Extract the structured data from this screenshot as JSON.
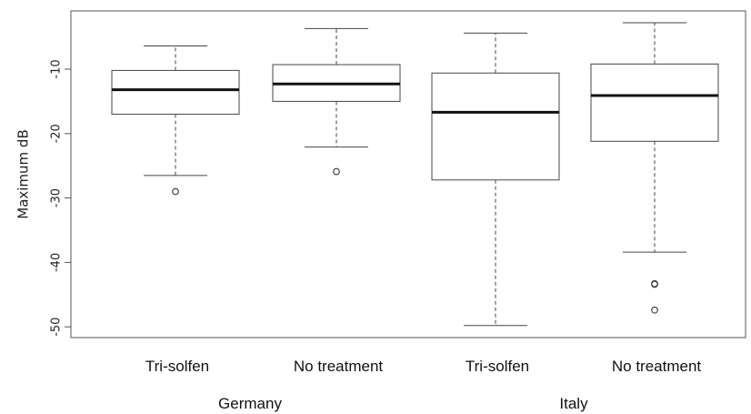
{
  "chart_data": {
    "type": "boxplot",
    "ylabel": "Maximum dB",
    "ylim": [
      -52,
      1
    ],
    "yticks": [
      -10,
      -20,
      -30,
      -40,
      -50
    ],
    "ytick_labels": [
      "-10",
      "-20",
      "-30",
      "-40",
      "-50"
    ],
    "boxes": [
      {
        "label": "Tri-solfen",
        "group": "Germany",
        "whisker_low": -26.5,
        "q1": -17.0,
        "median": -13.2,
        "q3": -10.2,
        "whisker_high": -6.4,
        "outliers": [
          -29.0
        ]
      },
      {
        "label": "No treatment",
        "group": "Germany",
        "whisker_low": -22.1,
        "q1": -15.0,
        "median": -12.3,
        "q3": -9.3,
        "whisker_high": -3.7,
        "outliers": [
          -25.9
        ]
      },
      {
        "label": "Tri-solfen",
        "group": "Italy",
        "whisker_low": -49.8,
        "q1": -27.2,
        "median": -16.7,
        "q3": -10.6,
        "whisker_high": -4.4,
        "outliers": []
      },
      {
        "label": "No treatment",
        "group": "Italy",
        "whisker_low": -38.4,
        "q1": -21.2,
        "median": -14.1,
        "q3": -9.2,
        "whisker_high": -2.8,
        "outliers": [
          -43.3,
          -43.4,
          -47.4
        ]
      }
    ],
    "group_labels": [
      "Germany",
      "Italy"
    ]
  }
}
